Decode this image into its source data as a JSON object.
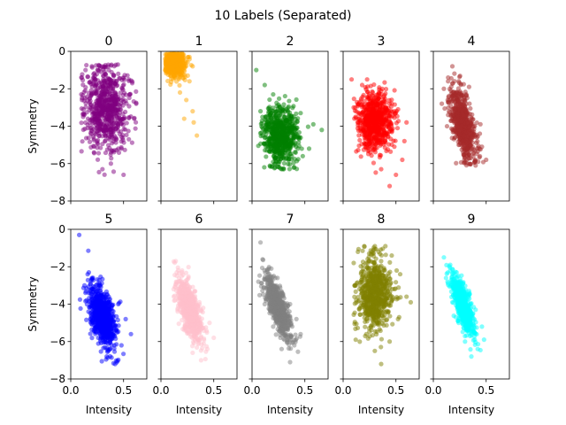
{
  "chart_data": {
    "type": "scatter",
    "title": "10 Labels (Separated)",
    "xlabel": "Intensity",
    "ylabel": "Symmetry",
    "xlim": [
      0.0,
      0.72
    ],
    "ylim": [
      -8,
      0
    ],
    "xticks": [
      "0.0",
      "0.5"
    ],
    "yticks": [
      "0",
      "−2",
      "−4",
      "−6",
      "−8"
    ],
    "grid": false,
    "layout": "2x5 panels, shared axes",
    "marker_alpha": 0.5,
    "series": [
      {
        "name": "0",
        "color": "#800080",
        "x_range": [
          0.1,
          0.62
        ],
        "y_range": [
          -6.6,
          -0.7
        ],
        "points": [
          [
            0.1,
            -2.3
          ],
          [
            0.14,
            -1.0
          ],
          [
            0.2,
            -0.8
          ],
          [
            0.28,
            -0.9
          ],
          [
            0.36,
            -1.0
          ],
          [
            0.45,
            -1.2
          ],
          [
            0.55,
            -1.5
          ],
          [
            0.62,
            -2.8
          ],
          [
            0.6,
            -3.6
          ],
          [
            0.55,
            -4.7
          ],
          [
            0.45,
            -5.2
          ],
          [
            0.38,
            -6.0
          ],
          [
            0.3,
            -6.3
          ],
          [
            0.5,
            -6.6
          ],
          [
            0.22,
            -5.4
          ],
          [
            0.16,
            -4.1
          ],
          [
            0.12,
            -3.1
          ]
        ],
        "n": 700,
        "center": [
          0.34,
          -3.0
        ],
        "spread": [
          0.1,
          1.1
        ]
      },
      {
        "name": "1",
        "color": "#FFA500",
        "x_range": [
          0.04,
          0.34
        ],
        "y_range": [
          -4.5,
          -0.1
        ],
        "points": [
          [
            0.04,
            -0.4
          ],
          [
            0.1,
            -0.1
          ],
          [
            0.2,
            -0.1
          ],
          [
            0.27,
            -0.3
          ],
          [
            0.3,
            -0.8
          ],
          [
            0.27,
            -1.6
          ],
          [
            0.24,
            -2.6
          ],
          [
            0.3,
            -3.2
          ],
          [
            0.31,
            -3.8
          ],
          [
            0.34,
            -4.5
          ],
          [
            0.22,
            -3.6
          ],
          [
            0.18,
            -2.2
          ],
          [
            0.12,
            -1.3
          ],
          [
            0.06,
            -1.0
          ]
        ],
        "n": 500,
        "center": [
          0.13,
          -0.7
        ],
        "spread": [
          0.05,
          0.35
        ]
      },
      {
        "name": "2",
        "color": "#008000",
        "x_range": [
          0.04,
          0.66
        ],
        "y_range": [
          -6.3,
          -1.0
        ],
        "points": [
          [
            0.04,
            -1.0
          ],
          [
            0.12,
            -1.8
          ],
          [
            0.2,
            -2.3
          ],
          [
            0.26,
            -3.0
          ],
          [
            0.36,
            -3.6
          ],
          [
            0.46,
            -3.3
          ],
          [
            0.58,
            -3.9
          ],
          [
            0.66,
            -4.2
          ],
          [
            0.54,
            -5.2
          ],
          [
            0.48,
            -5.6
          ],
          [
            0.4,
            -6.2
          ],
          [
            0.3,
            -6.3
          ],
          [
            0.22,
            -6.0
          ],
          [
            0.14,
            -5.3
          ],
          [
            0.1,
            -4.5
          ],
          [
            0.08,
            -3.2
          ]
        ],
        "n": 700,
        "center": [
          0.27,
          -4.5
        ],
        "spread": [
          0.08,
          0.75
        ]
      },
      {
        "name": "3",
        "color": "#FF0000",
        "x_range": [
          0.08,
          0.6
        ],
        "y_range": [
          -7.2,
          -1.5
        ],
        "points": [
          [
            0.08,
            -1.5
          ],
          [
            0.18,
            -1.8
          ],
          [
            0.28,
            -2.2
          ],
          [
            0.36,
            -2.3
          ],
          [
            0.44,
            -2.8
          ],
          [
            0.52,
            -3.1
          ],
          [
            0.6,
            -3.8
          ],
          [
            0.58,
            -4.8
          ],
          [
            0.56,
            -5.8
          ],
          [
            0.5,
            -6.6
          ],
          [
            0.44,
            -7.2
          ],
          [
            0.36,
            -6.3
          ],
          [
            0.26,
            -5.4
          ],
          [
            0.16,
            -4.1
          ],
          [
            0.1,
            -3.0
          ]
        ],
        "n": 700,
        "center": [
          0.3,
          -3.8
        ],
        "spread": [
          0.08,
          0.8
        ]
      },
      {
        "name": "4",
        "color": "#A52A2A",
        "x_range": [
          0.08,
          0.5
        ],
        "y_range": [
          -6.1,
          -0.8
        ],
        "points": [
          [
            0.18,
            -0.8
          ],
          [
            0.14,
            -1.4
          ],
          [
            0.1,
            -2.0
          ],
          [
            0.08,
            -2.8
          ],
          [
            0.14,
            -3.4
          ],
          [
            0.2,
            -4.2
          ],
          [
            0.24,
            -5.0
          ],
          [
            0.3,
            -5.9
          ],
          [
            0.4,
            -6.1
          ],
          [
            0.5,
            -5.8
          ],
          [
            0.46,
            -5.1
          ],
          [
            0.44,
            -4.4
          ],
          [
            0.36,
            -3.6
          ],
          [
            0.3,
            -2.6
          ],
          [
            0.24,
            -1.6
          ]
        ],
        "n": 700,
        "center": [
          0.28,
          -3.9
        ],
        "spread": [
          0.06,
          0.8
        ],
        "trend": -9.0
      },
      {
        "name": "5",
        "color": "#0000FF",
        "x_range": [
          0.08,
          0.57
        ],
        "y_range": [
          -7.2,
          -0.3
        ],
        "points": [
          [
            0.08,
            -0.3
          ],
          [
            0.16,
            -2.4
          ],
          [
            0.2,
            -2.6
          ],
          [
            0.28,
            -3.0
          ],
          [
            0.36,
            -3.6
          ],
          [
            0.45,
            -4.0
          ],
          [
            0.52,
            -4.8
          ],
          [
            0.57,
            -5.6
          ],
          [
            0.48,
            -6.2
          ],
          [
            0.42,
            -7.2
          ],
          [
            0.34,
            -6.8
          ],
          [
            0.26,
            -5.8
          ],
          [
            0.2,
            -4.9
          ],
          [
            0.15,
            -3.8
          ],
          [
            0.13,
            -3.0
          ]
        ],
        "n": 800,
        "center": [
          0.3,
          -4.6
        ],
        "spread": [
          0.06,
          0.7
        ],
        "trend": -7.0
      },
      {
        "name": "6",
        "color": "#FFC0CB",
        "x_range": [
          0.12,
          0.5
        ],
        "y_range": [
          -7.0,
          -1.7
        ],
        "points": [
          [
            0.14,
            -1.7
          ],
          [
            0.2,
            -2.2
          ],
          [
            0.26,
            -2.6
          ],
          [
            0.32,
            -3.3
          ],
          [
            0.4,
            -4.2
          ],
          [
            0.46,
            -5.0
          ],
          [
            0.5,
            -5.8
          ],
          [
            0.44,
            -6.4
          ],
          [
            0.38,
            -7.0
          ],
          [
            0.3,
            -6.6
          ],
          [
            0.24,
            -5.4
          ],
          [
            0.18,
            -4.3
          ],
          [
            0.12,
            -3.2
          ]
        ],
        "n": 700,
        "center": [
          0.27,
          -4.3
        ],
        "spread": [
          0.06,
          0.6
        ],
        "trend": -9.0
      },
      {
        "name": "7",
        "color": "#808080",
        "x_range": [
          0.06,
          0.46
        ],
        "y_range": [
          -7.1,
          -0.7
        ],
        "points": [
          [
            0.08,
            -0.7
          ],
          [
            0.1,
            -1.6
          ],
          [
            0.16,
            -2.1
          ],
          [
            0.22,
            -2.6
          ],
          [
            0.28,
            -3.4
          ],
          [
            0.36,
            -4.0
          ],
          [
            0.42,
            -4.8
          ],
          [
            0.46,
            -5.6
          ],
          [
            0.4,
            -6.2
          ],
          [
            0.36,
            -7.1
          ],
          [
            0.28,
            -6.4
          ],
          [
            0.2,
            -5.2
          ],
          [
            0.12,
            -4.0
          ],
          [
            0.06,
            -2.8
          ]
        ],
        "n": 700,
        "center": [
          0.25,
          -4.2
        ],
        "spread": [
          0.06,
          0.55
        ],
        "trend": -11.0
      },
      {
        "name": "8",
        "color": "#808000",
        "x_range": [
          0.1,
          0.64
        ],
        "y_range": [
          -7.2,
          -0.9
        ],
        "points": [
          [
            0.1,
            -1.8
          ],
          [
            0.14,
            -1.2
          ],
          [
            0.2,
            -0.9
          ],
          [
            0.3,
            -0.9
          ],
          [
            0.4,
            -0.9
          ],
          [
            0.46,
            -1.4
          ],
          [
            0.54,
            -2.4
          ],
          [
            0.6,
            -3.6
          ],
          [
            0.64,
            -3.9
          ],
          [
            0.52,
            -4.8
          ],
          [
            0.44,
            -6.0
          ],
          [
            0.36,
            -7.2
          ],
          [
            0.3,
            -6.5
          ],
          [
            0.22,
            -5.6
          ],
          [
            0.16,
            -4.2
          ],
          [
            0.12,
            -3.0
          ]
        ],
        "n": 700,
        "center": [
          0.3,
          -3.4
        ],
        "spread": [
          0.08,
          0.95
        ]
      },
      {
        "name": "9",
        "color": "#00FFFF",
        "x_range": [
          0.1,
          0.48
        ],
        "y_range": [
          -6.8,
          -1.5
        ],
        "points": [
          [
            0.1,
            -1.5
          ],
          [
            0.16,
            -1.9
          ],
          [
            0.22,
            -2.3
          ],
          [
            0.28,
            -2.9
          ],
          [
            0.34,
            -3.5
          ],
          [
            0.4,
            -4.3
          ],
          [
            0.46,
            -5.2
          ],
          [
            0.48,
            -5.9
          ],
          [
            0.42,
            -6.4
          ],
          [
            0.36,
            -6.8
          ],
          [
            0.3,
            -6.0
          ],
          [
            0.24,
            -5.0
          ],
          [
            0.18,
            -3.9
          ],
          [
            0.12,
            -2.6
          ]
        ],
        "n": 700,
        "center": [
          0.28,
          -4.1
        ],
        "spread": [
          0.05,
          0.5
        ],
        "trend": -12.0
      }
    ]
  }
}
